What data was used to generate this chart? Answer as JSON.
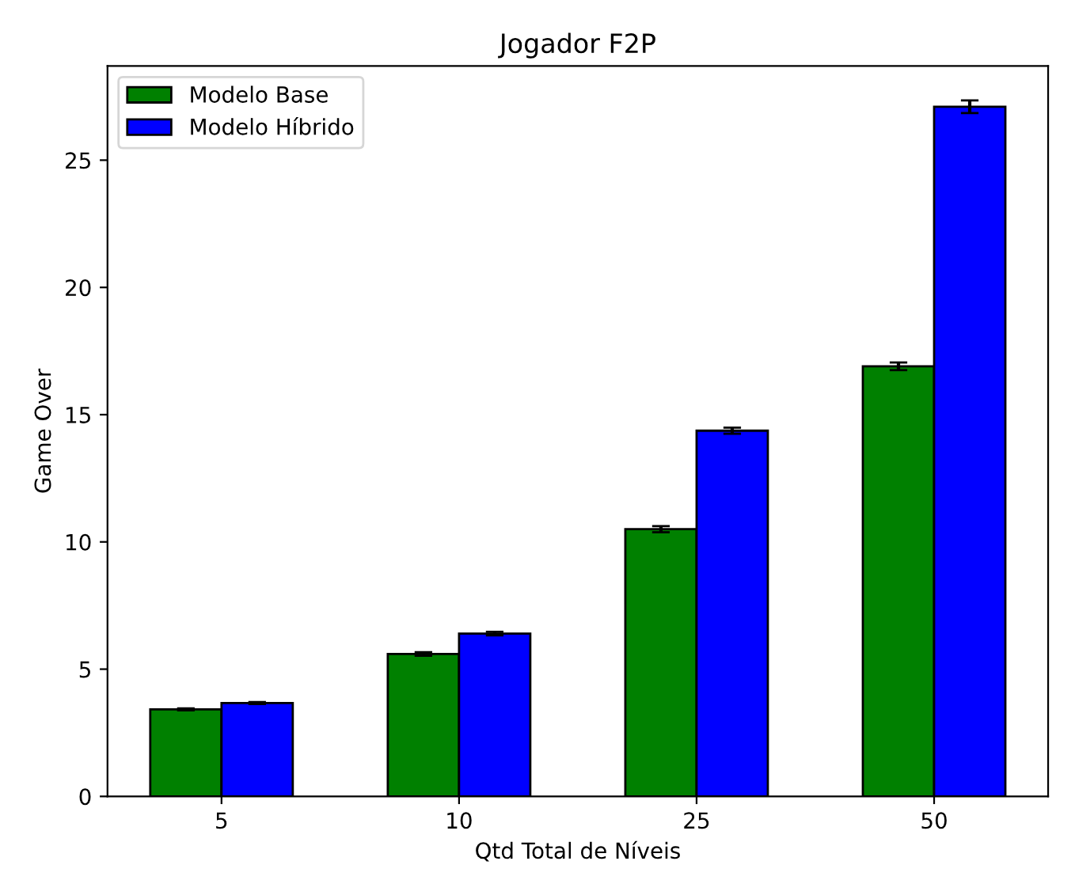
{
  "chart_data": {
    "type": "bar",
    "title": "Jogador F2P",
    "xlabel": "Qtd Total de Níveis",
    "ylabel": "Game Over",
    "categories": [
      "5",
      "10",
      "25",
      "50"
    ],
    "series": [
      {
        "name": "Modelo Base",
        "color": "#008000",
        "values": [
          3.42,
          5.6,
          10.5,
          16.9
        ],
        "errors": [
          0.04,
          0.07,
          0.12,
          0.15
        ]
      },
      {
        "name": "Modelo Híbrido",
        "color": "#0000ff",
        "values": [
          3.67,
          6.4,
          14.37,
          27.1
        ],
        "errors": [
          0.04,
          0.07,
          0.12,
          0.25
        ]
      }
    ],
    "ylim": [
      0,
      28.7
    ],
    "yticks": [
      0,
      5,
      10,
      15,
      20,
      25
    ],
    "grid": false,
    "legend": "top left"
  }
}
